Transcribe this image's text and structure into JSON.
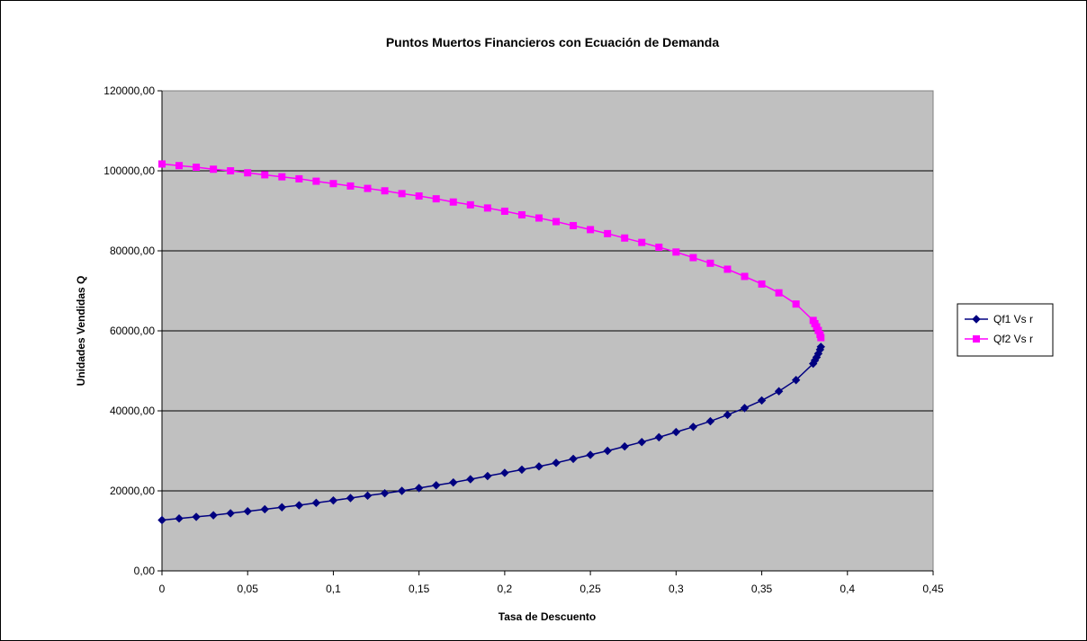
{
  "chart_data": {
    "type": "scatter",
    "title": "Puntos Muertos Financieros con Ecuación de Demanda",
    "xlabel": "Tasa de Descuento",
    "ylabel": "Unidades Vendidas Q",
    "xlim": [
      0,
      0.45
    ],
    "ylim": [
      0,
      120000
    ],
    "x_ticks": [
      "0",
      "0,05",
      "0,1",
      "0,15",
      "0,2",
      "0,25",
      "0,3",
      "0,35",
      "0,4",
      "0,45"
    ],
    "y_ticks": [
      "0,00",
      "20000,00",
      "40000,00",
      "60000,00",
      "80000,00",
      "100000,00",
      "120000,00"
    ],
    "grid": "horizontal",
    "plot_background": "#c0c0c0",
    "legend_position": "right",
    "series": [
      {
        "name": "Qf1 Vs r",
        "color": "#000080",
        "marker": "diamond",
        "x": [
          0,
          0.01,
          0.02,
          0.03,
          0.04,
          0.05,
          0.06,
          0.07,
          0.08,
          0.09,
          0.1,
          0.11,
          0.12,
          0.13,
          0.14,
          0.15,
          0.16,
          0.17,
          0.18,
          0.19,
          0.2,
          0.21,
          0.22,
          0.23,
          0.24,
          0.25,
          0.26,
          0.27,
          0.28,
          0.29,
          0.3,
          0.31,
          0.32,
          0.33,
          0.34,
          0.35,
          0.36,
          0.37,
          0.38,
          0.381,
          0.382,
          0.383,
          0.384,
          0.3845
        ],
        "y": [
          12700,
          13100,
          13500,
          13900,
          14400,
          14900,
          15400,
          15900,
          16400,
          17000,
          17600,
          18200,
          18800,
          19400,
          20000,
          20700,
          21400,
          22100,
          22900,
          23700,
          24500,
          25300,
          26100,
          27000,
          28000,
          29000,
          30000,
          31100,
          32200,
          33400,
          34700,
          36000,
          37400,
          39000,
          40700,
          42600,
          44900,
          47700,
          51800,
          52600,
          53400,
          54300,
          55300,
          56000
        ]
      },
      {
        "name": "Qf2 Vs r",
        "color": "#ff00ff",
        "marker": "square",
        "x": [
          0,
          0.01,
          0.02,
          0.03,
          0.04,
          0.05,
          0.06,
          0.07,
          0.08,
          0.09,
          0.1,
          0.11,
          0.12,
          0.13,
          0.14,
          0.15,
          0.16,
          0.17,
          0.18,
          0.19,
          0.2,
          0.21,
          0.22,
          0.23,
          0.24,
          0.25,
          0.26,
          0.27,
          0.28,
          0.29,
          0.3,
          0.31,
          0.32,
          0.33,
          0.34,
          0.35,
          0.36,
          0.37,
          0.38,
          0.381,
          0.382,
          0.383,
          0.384,
          0.3845
        ],
        "y": [
          101700,
          101300,
          100900,
          100400,
          100000,
          99500,
          99000,
          98500,
          98000,
          97400,
          96800,
          96200,
          95600,
          95000,
          94300,
          93700,
          93000,
          92200,
          91500,
          90700,
          89900,
          89000,
          88200,
          87300,
          86300,
          85300,
          84300,
          83200,
          82100,
          80900,
          79700,
          78300,
          76900,
          75400,
          73600,
          71700,
          69500,
          66700,
          62600,
          61800,
          61000,
          60100,
          59100,
          58300
        ]
      }
    ]
  }
}
